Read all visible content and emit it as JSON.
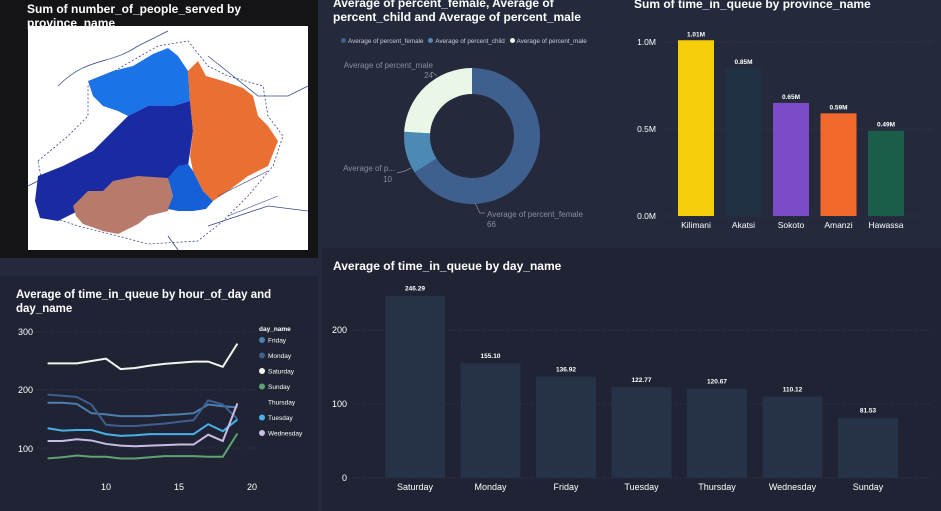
{
  "colors": {
    "bg": "#242a3b",
    "panel_dark": "#1e2131",
    "panel_black": "#141416",
    "text": "#ffffff",
    "muted": "#8a8f9c",
    "grid": "#3c4254"
  },
  "map": {
    "title": "Sum of number_of_people_served by province_name",
    "regions": [
      {
        "name": "northwest",
        "color": "#1c73e8"
      },
      {
        "name": "central",
        "color": "#1a2aa3"
      },
      {
        "name": "east",
        "color": "#ea6f32"
      },
      {
        "name": "south",
        "color": "#b87a6b"
      },
      {
        "name": "southeast",
        "color": "#1560d6"
      }
    ]
  },
  "donut": {
    "title": "Average of percent_female, Average of percent_child and Average of percent_male",
    "legend": [
      {
        "label": "Average of percent_female",
        "color": "#3f5f8e"
      },
      {
        "label": "Average of percent_child",
        "color": "#4c8ab5"
      },
      {
        "label": "Average of percent_male",
        "color": "#e8f7e6"
      }
    ],
    "labels": {
      "male_name": "Average of percent_male",
      "male_value": "24",
      "child_name": "Average of p...",
      "child_value": "10",
      "female_name": "Average of percent_female",
      "female_value": "66"
    }
  },
  "province_bar": {
    "title": "Sum of time_in_queue by province_name",
    "y_ticks": [
      "0.0M",
      "0.5M",
      "1.0M"
    ]
  },
  "line_chart": {
    "title": "Average of time_in_queue by hour_of_day and day_name",
    "legend_title": "day_name",
    "y_ticks": [
      "100",
      "200",
      "300"
    ],
    "x_ticks": [
      "10",
      "15",
      "20"
    ]
  },
  "day_bar": {
    "title": "Average of time_in_queue by day_name",
    "y_ticks": [
      "0",
      "100",
      "200"
    ]
  },
  "chart_data": [
    {
      "type": "pie",
      "categories": [
        "Average of percent_female",
        "Average of percent_child",
        "Average of percent_male"
      ],
      "values": [
        66,
        10,
        24
      ],
      "colors": [
        "#3f5f8e",
        "#4c8ab5",
        "#e8f7e6"
      ]
    },
    {
      "type": "bar",
      "categories": [
        "Kilimani",
        "Akatsi",
        "Sokoto",
        "Amanzi",
        "Hawassa"
      ],
      "values": [
        1.01,
        0.85,
        0.65,
        0.59,
        0.49
      ],
      "data_labels": [
        "1.01M",
        "0.85M",
        "0.65M",
        "0.59M",
        "0.49M"
      ],
      "colors": [
        "#f6cf0a",
        "#213044",
        "#7b4cc6",
        "#f2692e",
        "#1b5c4a"
      ],
      "ylim": [
        0,
        1.1
      ]
    },
    {
      "type": "line",
      "x": [
        6,
        7,
        8,
        9,
        10,
        11,
        12,
        13,
        14,
        15,
        16,
        17,
        18,
        19
      ],
      "xlim": [
        6,
        20
      ],
      "ylim": [
        70,
        300
      ],
      "series": [
        {
          "name": "Friday",
          "color": "#4d7fb0",
          "values": [
            178,
            178,
            176,
            160,
            158,
            155,
            155,
            155,
            157,
            158,
            160,
            175,
            172,
            170
          ]
        },
        {
          "name": "Monday",
          "color": "#3f5f8e",
          "values": [
            192,
            190,
            188,
            175,
            140,
            138,
            138,
            140,
            142,
            145,
            148,
            182,
            175,
            150
          ]
        },
        {
          "name": "Saturday",
          "color": "#f5f5f0",
          "values": [
            246,
            246,
            246,
            250,
            254,
            236,
            238,
            242,
            245,
            247,
            249,
            249,
            240,
            280
          ]
        },
        {
          "name": "Sunday",
          "color": "#5fa373",
          "values": [
            82,
            84,
            87,
            85,
            85,
            82,
            82,
            84,
            86,
            86,
            86,
            85,
            85,
            125
          ]
        },
        {
          "name": "Thursday",
          "color": "#1d2240",
          "values": [
            138,
            138,
            136,
            134,
            124,
            121,
            121,
            121,
            121,
            123,
            124,
            148,
            142,
            140
          ]
        },
        {
          "name": "Tuesday",
          "color": "#4ab1e6",
          "values": [
            134,
            130,
            131,
            131,
            124,
            121,
            122,
            124,
            124,
            124,
            124,
            141,
            129,
            149
          ]
        },
        {
          "name": "Wednesday",
          "color": "#c9bde6",
          "values": [
            112,
            112,
            115,
            113,
            107,
            104,
            103,
            104,
            105,
            106,
            106,
            123,
            112,
            177
          ]
        }
      ]
    },
    {
      "type": "bar",
      "categories": [
        "Saturday",
        "Monday",
        "Friday",
        "Tuesday",
        "Thursday",
        "Wednesday",
        "Sunday"
      ],
      "values": [
        246.29,
        155.1,
        136.92,
        122.77,
        120.67,
        110.12,
        81.53
      ],
      "data_labels": [
        "246.29",
        "155.10",
        "136.92",
        "122.77",
        "120.67",
        "110.12",
        "81.53"
      ],
      "color": "#253247",
      "ylim": [
        0,
        260
      ]
    }
  ]
}
